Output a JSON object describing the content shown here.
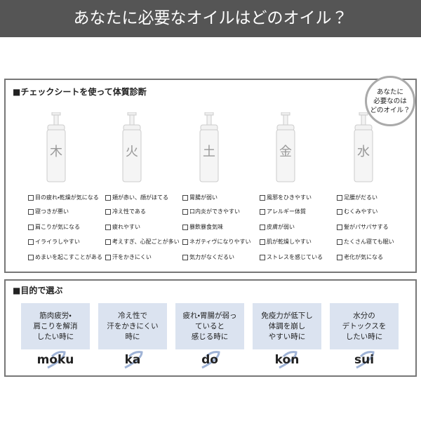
{
  "header": {
    "title": "あなたに必要なオイルはどのオイル？"
  },
  "check_section": {
    "title": "■チェックシートを使って体質診断",
    "badge": [
      "あなたに",
      "必要なのは",
      "どのオイル？"
    ],
    "columns": [
      {
        "kanji": "木",
        "items": [
          "目の疲れ・乾燥が気になる",
          "寝つきが悪い",
          "肩こりが気になる",
          "イライラしやすい",
          "めまいを起こすことがある"
        ]
      },
      {
        "kanji": "火",
        "items": [
          "頬が赤い、顔がほてる",
          "冷え性である",
          "疲れやすい",
          "考えすぎ、心配ごとが多い",
          "汗をかきにくい"
        ]
      },
      {
        "kanji": "土",
        "items": [
          "胃腸が弱い",
          "口内炎ができやすい",
          "暴飲暴食気味",
          "ネガティヴになりやすい",
          "気力がなくだるい"
        ]
      },
      {
        "kanji": "金",
        "items": [
          "風邪をひきやすい",
          "アレルギー体質",
          "皮膚が弱い",
          "肌が乾燥しやすい",
          "ストレスを感じている"
        ]
      },
      {
        "kanji": "水",
        "items": [
          "足腰がだるい",
          "むくみやすい",
          "髪がパサパサする",
          "たくさん寝ても眠い",
          "老化が気になる"
        ]
      }
    ]
  },
  "purpose_section": {
    "title": "■目的で選ぶ",
    "cards": [
      {
        "lines": [
          "筋肉疲労・",
          "肩こりを解消",
          "したい時に"
        ],
        "label": "moku"
      },
      {
        "lines": [
          "冷え性で",
          "汗をかきにくい",
          "時に"
        ],
        "label": "ka"
      },
      {
        "lines": [
          "疲れ・胃腸が弱っ",
          "ていると",
          "感じる時に"
        ],
        "label": "do"
      },
      {
        "lines": [
          "免疫力が低下し",
          "体調を崩し",
          "やすい時に"
        ],
        "label": "kon"
      },
      {
        "lines": [
          "水分の",
          "デトックスを",
          "したい時に"
        ],
        "label": "sui"
      }
    ]
  }
}
